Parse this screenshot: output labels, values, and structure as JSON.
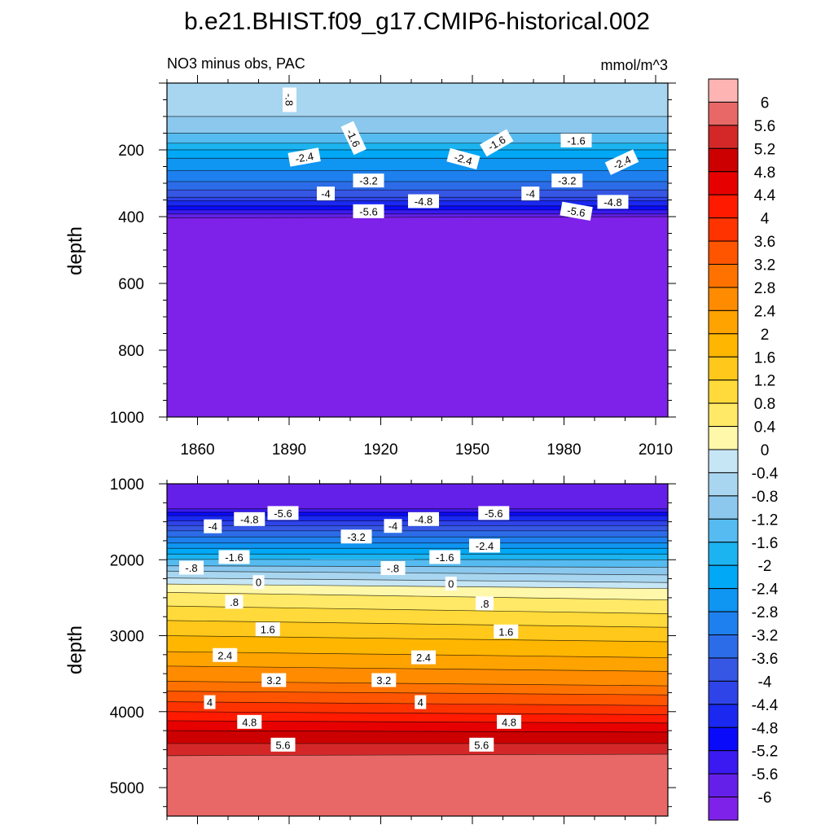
{
  "chart_data": [
    {
      "type": "contour",
      "title": "b.e21.BHIST.f09_g17.CMIP6-historical.002",
      "left_string": "NO3 minus obs, PAC",
      "right_string": "mmol/m^3",
      "ylabel": "depth",
      "xlim": [
        1850,
        2014
      ],
      "ylim": [
        0,
        1000
      ],
      "y_reversed": true,
      "xticks": [
        "1860",
        "1890",
        "1920",
        "1950",
        "1980",
        "2010"
      ],
      "yticks": [
        "200",
        "400",
        "600",
        "800",
        "1000"
      ],
      "layers": [
        {
          "level": -0.8,
          "depth": [
            100,
            100
          ]
        },
        {
          "level": -1.2,
          "depth": [
            150,
            150
          ]
        },
        {
          "level": -1.6,
          "depth": [
            180,
            180
          ]
        },
        {
          "level": -2.0,
          "depth": [
            200,
            200
          ]
        },
        {
          "level": -2.4,
          "depth": [
            225,
            225
          ]
        },
        {
          "level": -2.8,
          "depth": [
            262,
            262
          ]
        },
        {
          "level": -3.2,
          "depth": [
            295,
            295
          ]
        },
        {
          "level": -3.6,
          "depth": [
            320,
            320
          ]
        },
        {
          "level": -4.0,
          "depth": [
            342,
            342
          ]
        },
        {
          "level": -4.4,
          "depth": [
            352,
            352
          ]
        },
        {
          "level": -4.8,
          "depth": [
            368,
            368
          ]
        },
        {
          "level": -5.2,
          "depth": [
            380,
            380
          ]
        },
        {
          "level": -5.6,
          "depth": [
            392,
            392
          ]
        },
        {
          "level": -6.0,
          "depth": [
            404,
            400
          ]
        }
      ],
      "contour_labels": [
        {
          "text": "-.8",
          "x": 1890,
          "y": 50,
          "angle": 90
        },
        {
          "text": "-1.6",
          "x": 1911,
          "y": 165,
          "angle": 65
        },
        {
          "text": "-1.6",
          "x": 1958,
          "y": 180,
          "angle": -30
        },
        {
          "text": "-1.6",
          "x": 1984,
          "y": 173,
          "angle": 0
        },
        {
          "text": "-2.4",
          "x": 1895,
          "y": 223,
          "angle": -10
        },
        {
          "text": "-2.4",
          "x": 1947,
          "y": 228,
          "angle": 15
        },
        {
          "text": "-2.4",
          "x": 1999,
          "y": 238,
          "angle": -25
        },
        {
          "text": "-3.2",
          "x": 1916,
          "y": 293,
          "angle": 0
        },
        {
          "text": "-3.2",
          "x": 1981,
          "y": 293,
          "angle": 0
        },
        {
          "text": "-4",
          "x": 1902,
          "y": 332,
          "angle": 0
        },
        {
          "text": "-4",
          "x": 1969,
          "y": 332,
          "angle": 0
        },
        {
          "text": "-4.8",
          "x": 1934,
          "y": 355,
          "angle": 0
        },
        {
          "text": "-4.8",
          "x": 1996,
          "y": 357,
          "angle": 0
        },
        {
          "text": "-5.6",
          "x": 1916,
          "y": 385,
          "angle": 0
        },
        {
          "text": "-5.6",
          "x": 1984,
          "y": 385,
          "angle": 10
        }
      ]
    },
    {
      "type": "contour",
      "ylabel": "depth",
      "xlim": [
        1850,
        2014
      ],
      "ylim": [
        1000,
        5375
      ],
      "y_reversed": true,
      "yticks": [
        "1000",
        "2000",
        "3000",
        "4000",
        "5000"
      ],
      "layers": [
        {
          "level": -5.6,
          "depth": [
            1330,
            1330
          ]
        },
        {
          "level": -5.2,
          "depth": [
            1375,
            1375
          ]
        },
        {
          "level": -4.8,
          "depth": [
            1420,
            1420
          ]
        },
        {
          "level": -4.4,
          "depth": [
            1490,
            1490
          ]
        },
        {
          "level": -4.0,
          "depth": [
            1550,
            1550
          ]
        },
        {
          "level": -3.6,
          "depth": [
            1620,
            1620
          ]
        },
        {
          "level": -3.2,
          "depth": [
            1700,
            1700
          ]
        },
        {
          "level": -2.8,
          "depth": [
            1780,
            1780
          ]
        },
        {
          "level": -2.4,
          "depth": [
            1850,
            1850
          ]
        },
        {
          "level": -2.0,
          "depth": [
            1925,
            1925
          ]
        },
        {
          "level": -1.6,
          "depth": [
            1995,
            2000
          ]
        },
        {
          "level": -1.2,
          "depth": [
            2080,
            2100
          ]
        },
        {
          "level": -0.8,
          "depth": [
            2150,
            2200
          ]
        },
        {
          "level": -0.4,
          "depth": [
            2240,
            2300
          ]
        },
        {
          "level": 0.0,
          "depth": [
            2320,
            2380
          ]
        },
        {
          "level": 0.4,
          "depth": [
            2430,
            2530
          ]
        },
        {
          "level": 0.8,
          "depth": [
            2610,
            2710
          ]
        },
        {
          "level": 1.2,
          "depth": [
            2800,
            2890
          ]
        },
        {
          "level": 1.6,
          "depth": [
            3000,
            3080
          ]
        },
        {
          "level": 2.0,
          "depth": [
            3210,
            3290
          ]
        },
        {
          "level": 2.4,
          "depth": [
            3400,
            3470
          ]
        },
        {
          "level": 2.8,
          "depth": [
            3600,
            3660
          ]
        },
        {
          "level": 3.2,
          "depth": [
            3730,
            3780
          ]
        },
        {
          "level": 3.6,
          "depth": [
            3870,
            3920
          ]
        },
        {
          "level": 4.0,
          "depth": [
            4000,
            4040
          ]
        },
        {
          "level": 4.4,
          "depth": [
            4120,
            4150
          ]
        },
        {
          "level": 4.8,
          "depth": [
            4250,
            4270
          ]
        },
        {
          "level": 5.2,
          "depth": [
            4420,
            4420
          ]
        },
        {
          "level": 5.6,
          "depth": [
            4580,
            4560
          ]
        },
        {
          "level": 6.0,
          "depth": [
            5375,
            5375
          ]
        }
      ],
      "contour_labels": [
        {
          "text": "-5.6",
          "x": 1888,
          "y": 1390,
          "angle": 0
        },
        {
          "text": "-5.6",
          "x": 1957,
          "y": 1390,
          "angle": 0
        },
        {
          "text": "-4.8",
          "x": 1877,
          "y": 1470,
          "angle": 0
        },
        {
          "text": "-4.8",
          "x": 1934,
          "y": 1470,
          "angle": 0
        },
        {
          "text": "-4",
          "x": 1865,
          "y": 1565,
          "angle": 0
        },
        {
          "text": "-4",
          "x": 1924,
          "y": 1560,
          "angle": 0
        },
        {
          "text": "-3.2",
          "x": 1912,
          "y": 1700,
          "angle": 0
        },
        {
          "text": "-2.4",
          "x": 1954,
          "y": 1820,
          "angle": 0
        },
        {
          "text": "-1.6",
          "x": 1872,
          "y": 1970,
          "angle": 0
        },
        {
          "text": "-1.6",
          "x": 1941,
          "y": 1970,
          "angle": 0
        },
        {
          "text": "-.8",
          "x": 1858,
          "y": 2110,
          "angle": 0
        },
        {
          "text": "-.8",
          "x": 1924,
          "y": 2115,
          "angle": 0
        },
        {
          "text": "0",
          "x": 1880,
          "y": 2300,
          "angle": 0
        },
        {
          "text": "0",
          "x": 1943,
          "y": 2320,
          "angle": 0
        },
        {
          "text": ".8",
          "x": 1872,
          "y": 2560,
          "angle": 0
        },
        {
          "text": ".8",
          "x": 1954,
          "y": 2580,
          "angle": 0
        },
        {
          "text": "1.6",
          "x": 1883,
          "y": 2920,
          "angle": 0
        },
        {
          "text": "1.6",
          "x": 1961,
          "y": 2950,
          "angle": 0
        },
        {
          "text": "2.4",
          "x": 1869,
          "y": 3260,
          "angle": 0
        },
        {
          "text": "2.4",
          "x": 1934,
          "y": 3290,
          "angle": 0
        },
        {
          "text": "3.2",
          "x": 1885,
          "y": 3590,
          "angle": 0
        },
        {
          "text": "3.2",
          "x": 1921,
          "y": 3590,
          "angle": 0
        },
        {
          "text": "4",
          "x": 1864,
          "y": 3880,
          "angle": 0
        },
        {
          "text": "4",
          "x": 1933,
          "y": 3880,
          "angle": 0
        },
        {
          "text": "4.8",
          "x": 1877,
          "y": 4140,
          "angle": 0
        },
        {
          "text": "4.8",
          "x": 1962,
          "y": 4140,
          "angle": 0
        },
        {
          "text": "5.6",
          "x": 1888,
          "y": 4440,
          "angle": 0
        },
        {
          "text": "5.6",
          "x": 1953,
          "y": 4440,
          "angle": 0
        }
      ]
    }
  ],
  "colorbar": {
    "labels": [
      "6",
      "5.6",
      "5.2",
      "4.8",
      "4.4",
      "4",
      "3.6",
      "3.2",
      "2.8",
      "2.4",
      "2",
      "1.6",
      "1.2",
      "0.8",
      "0.4",
      "0",
      "-0.4",
      "-0.8",
      "-1.2",
      "-1.6",
      "-2",
      "-2.4",
      "-2.8",
      "-3.2",
      "-3.6",
      "-4",
      "-4.4",
      "-4.8",
      "-5.2",
      "-5.6",
      "-6"
    ],
    "colors": [
      "#FFB4B4",
      "#E86868",
      "#D42828",
      "#CC0000",
      "#E60000",
      "#FF1A00",
      "#FF3300",
      "#FF5500",
      "#FF7200",
      "#FF8C00",
      "#FFA300",
      "#FFB600",
      "#FFC81A",
      "#FFDA3A",
      "#FFE966",
      "#FFF8AA",
      "#C6E6F5",
      "#A8D6F0",
      "#8CC8EE",
      "#55BBF0",
      "#1CB4F0",
      "#00A8F6",
      "#0F95F2",
      "#1E80EE",
      "#2C6CE8",
      "#3656E4",
      "#2E44E8",
      "#1A28F0",
      "#0A0AFA",
      "#3A1AF0",
      "#6420E8",
      "#7E22E9"
    ]
  }
}
